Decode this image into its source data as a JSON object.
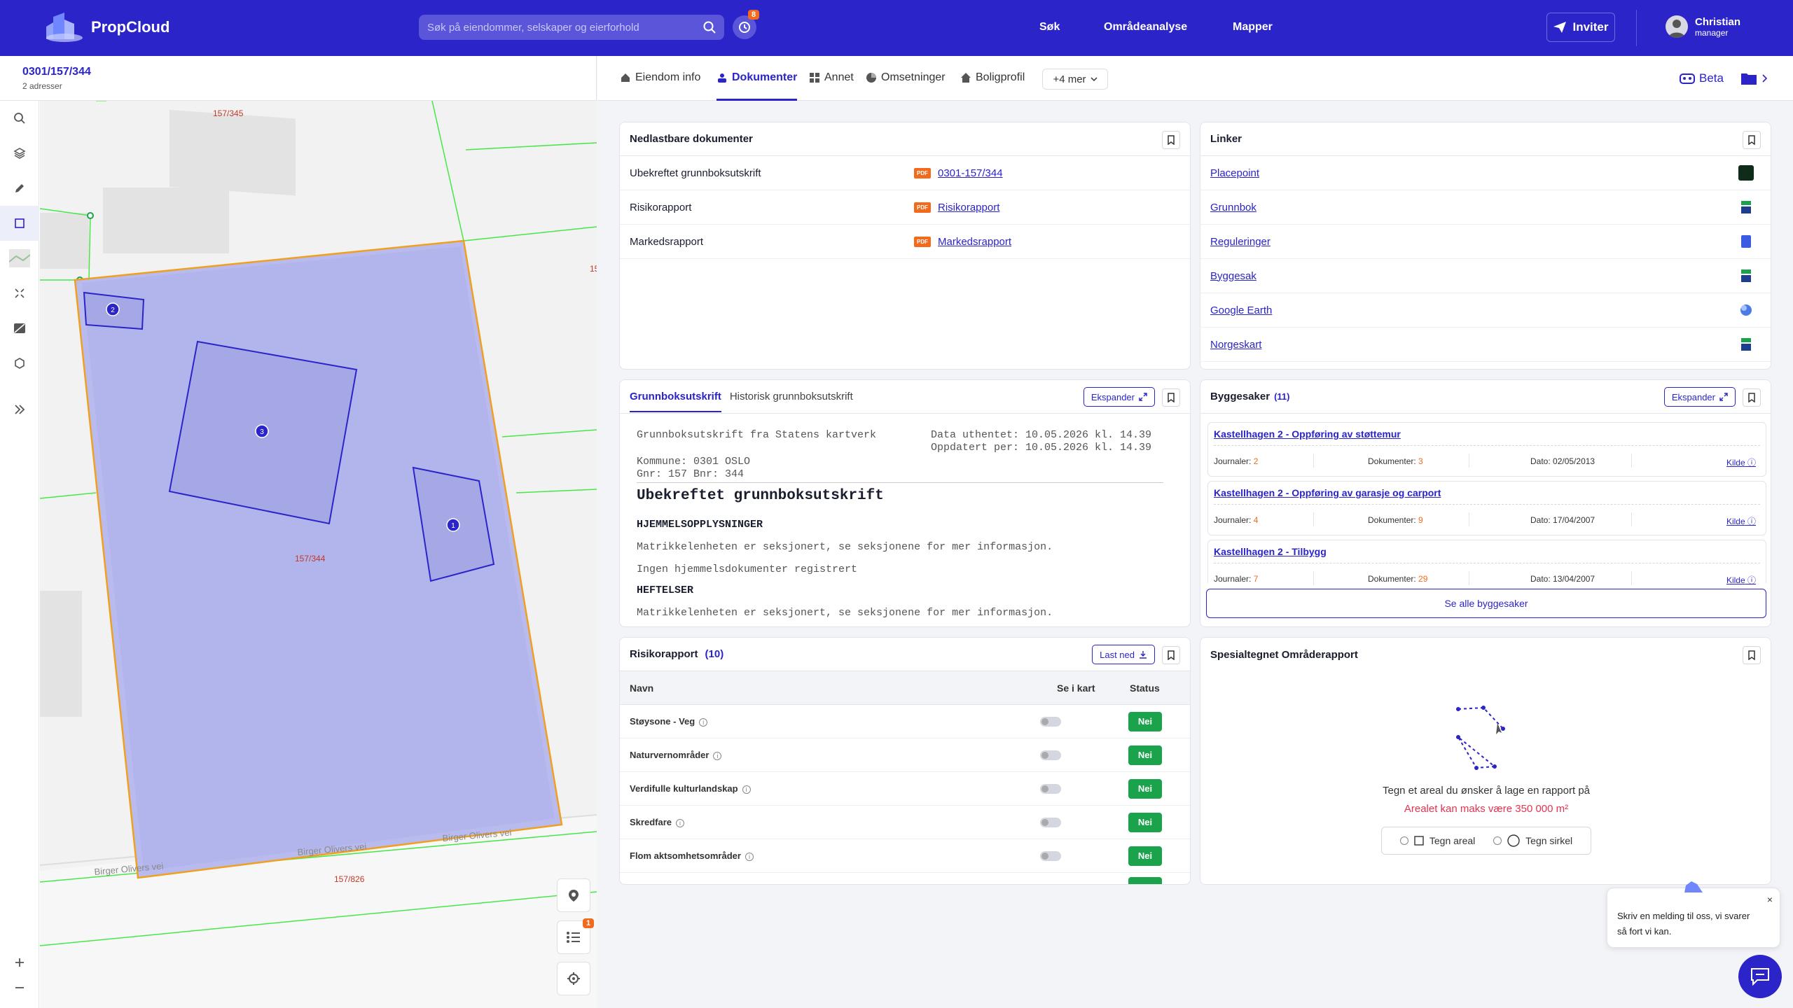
{
  "app": {
    "name": "PropCloud"
  },
  "header": {
    "search_placeholder": "Søk på eiendommer, selskaper og eierforhold",
    "history_badge": "8",
    "nav": [
      "Søk",
      "Områdeanalyse",
      "Mapper"
    ],
    "invite": "Inviter",
    "user": {
      "name": "Christian",
      "role": "manager"
    }
  },
  "property": {
    "id": "0301/157/344",
    "addresses": "2 adresser"
  },
  "map": {
    "labels": {
      "p345": "157/345",
      "p344": "157/344",
      "p826": "157/826",
      "p15": "15",
      "road1": "Birger Olivers vei",
      "road2": "Birger Olivers vei",
      "road3": "Birger Olivers vei"
    },
    "markers": [
      "1",
      "2",
      "3"
    ],
    "layers_badge": "1"
  },
  "tabs": [
    {
      "label": "Eiendom info",
      "icon": "home-icon"
    },
    {
      "label": "Dokumenter",
      "icon": "person-doc-icon"
    },
    {
      "label": "Annet",
      "icon": "grid-icon"
    },
    {
      "label": "Omsetninger",
      "icon": "chart-icon"
    },
    {
      "label": "Boligprofil",
      "icon": "house-icon"
    }
  ],
  "more_tabs": "+4 mer",
  "beta": "Beta",
  "downloads": {
    "title": "Nedlastbare dokumenter",
    "pdf": "PDF",
    "rows": [
      {
        "name": "Ubekreftet grunnboksutskrift",
        "link": "0301-157/344"
      },
      {
        "name": "Risikorapport",
        "link": "Risikorapport"
      },
      {
        "name": "Markedsrapport",
        "link": "Markedsrapport"
      }
    ]
  },
  "links": {
    "title": "Linker",
    "items": [
      "Placepoint",
      "Grunnbok",
      "Reguleringer",
      "Byggesak",
      "Google Earth",
      "Norgeskart"
    ]
  },
  "grunnbok": {
    "tab_active": "Grunnboksutskrift",
    "tab_other": "Historisk grunnboksutskrift",
    "expand": "Ekspander",
    "line1_left": "Grunnboksutskrift fra Statens kartverk",
    "line1_right": "Data uthentet: 10.05.2026 kl. 14.39",
    "line2_right": "Oppdatert per: 10.05.2026 kl. 14.39",
    "kommune": "Kommune: 0301 OSLO",
    "gnr": "Gnr: 157 Bnr: 344",
    "heading": "Ubekreftet grunnboksutskrift",
    "sec1": "HJEMMELSOPPLYSNINGER",
    "text1": "Matrikkelenheten er seksjonert, se seksjonene for mer informasjon.",
    "text2": "Ingen hjemmelsdokumenter registrert",
    "sec2": "HEFTELSER",
    "text3": "Matrikkelenheten er seksjonert, se seksjonene for mer informasjon."
  },
  "byggesaker": {
    "title": "Byggesaker",
    "count": "(11)",
    "expand": "Ekspander",
    "journ_label": "Journaler:",
    "dok_label": "Dokumenter:",
    "dato_label": "Dato:",
    "kilde": "Kilde",
    "cases": [
      {
        "title": "Kastellhagen 2 - Oppføring av støttemur",
        "journaler": "2",
        "dokumenter": "3",
        "dato": "02/05/2013"
      },
      {
        "title": "Kastellhagen 2 - Oppføring av garasje og carport",
        "journaler": "4",
        "dokumenter": "9",
        "dato": "17/04/2007"
      },
      {
        "title": "Kastellhagen 2 - Tilbygg",
        "journaler": "7",
        "dokumenter": "29",
        "dato": "13/04/2007"
      }
    ],
    "see_all": "Se alle byggesaker"
  },
  "risiko": {
    "title": "Risikorapport",
    "count": "(10)",
    "download": "Last ned",
    "col_name": "Navn",
    "col_map": "Se i kart",
    "col_status": "Status",
    "rows": [
      {
        "name": "Støysone - Veg",
        "status": "Nei"
      },
      {
        "name": "Naturvernområder",
        "status": "Nei"
      },
      {
        "name": "Verdifulle kulturlandskap",
        "status": "Nei"
      },
      {
        "name": "Skredfare",
        "status": "Nei"
      },
      {
        "name": "Flom aktsomhetsområder",
        "status": "Nei"
      }
    ]
  },
  "omrade": {
    "title": "Spesialtegnet Områderapport",
    "prompt": "Tegn et areal du ønsker å lage en rapport på",
    "limit": "Arealet kan maks være 350 000 m²",
    "opt1": "Tegn areal",
    "opt2": "Tegn sirkel"
  },
  "chat": {
    "text1": "Skriv en melding til oss, vi svarer",
    "text2": "så fort vi kan."
  },
  "colors": {
    "brand": "#2b24c9",
    "accent": "#f26b1d",
    "success": "#1aa34a"
  }
}
